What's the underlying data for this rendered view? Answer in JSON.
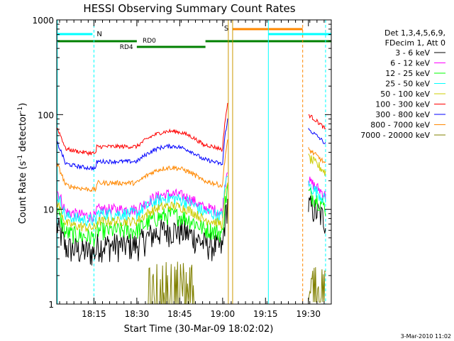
{
  "chart_data": {
    "type": "line",
    "title": "HESSI Observing Summary Count Rates",
    "xlabel": "Start Time (30-Mar-09 18:02:02)",
    "ylabel_main": "Count Rate (s",
    "ylabel_sup1": "-1",
    "ylabel_mid": " detector",
    "ylabel_sup2": "-1",
    "ylabel_end": ")",
    "timestamp": "3-Mar-2010 11:02",
    "xlim": [
      0,
      96
    ],
    "ylim": [
      1,
      1000
    ],
    "yscale": "log",
    "x_ticks": [
      {
        "value": 13,
        "label": "18:15"
      },
      {
        "value": 28,
        "label": "18:30"
      },
      {
        "value": 43,
        "label": "18:45"
      },
      {
        "value": 58,
        "label": "19:00"
      },
      {
        "value": 73,
        "label": "19:15"
      },
      {
        "value": 88,
        "label": "19:30"
      }
    ],
    "y_ticks": [
      {
        "value": 1,
        "label": "1"
      },
      {
        "value": 10,
        "label": "10"
      },
      {
        "value": 100,
        "label": "100"
      },
      {
        "value": 1000,
        "label": "1000"
      }
    ],
    "legend": {
      "placement": "right",
      "header": [
        "Det 1,3,4,5,6,9,",
        "FDecim 1, Att 0"
      ]
    },
    "series": [
      {
        "name": "3 - 6 keV",
        "color": "#000000",
        "base": 4.2,
        "after": 11,
        "noise": 0.35
      },
      {
        "name": "6 - 12 keV",
        "color": "#ff00ff",
        "base": 10,
        "after": 20,
        "noise": 0.14
      },
      {
        "name": "12 - 25 keV",
        "color": "#00ff00",
        "base": 6,
        "after": 15,
        "noise": 0.22
      },
      {
        "name": "25 - 50 keV",
        "color": "#00ffff",
        "base": 9,
        "after": 18,
        "noise": 0.16
      },
      {
        "name": "50 - 100 keV",
        "color": "#cccc00",
        "base": 7.5,
        "after": 35,
        "noise": 0.12
      },
      {
        "name": "100 - 300 keV",
        "color": "#ff0000",
        "base": 46,
        "after": 100,
        "noise": 0.05
      },
      {
        "name": "300 - 800 keV",
        "color": "#0000ff",
        "base": 32,
        "after": 70,
        "noise": 0.05
      },
      {
        "name": "800 - 7000 keV",
        "color": "#ff8800",
        "base": 19,
        "after": 43,
        "noise": 0.06
      },
      {
        "name": "7000 - 20000 keV",
        "color": "#808000",
        "base": 1,
        "after": 2,
        "noise": 0
      }
    ],
    "annotations": {
      "night_label": "N",
      "saa_label": "S",
      "rd0_label": "RD0",
      "rd4_label": "RD4"
    },
    "markers": {
      "night_start": 13,
      "night_end": 74,
      "saa_start": 61.5,
      "saa_end": 86,
      "data_gap_start": 60,
      "data_gap_end": 88
    },
    "colors": {
      "night": "#00ffff",
      "saa": "#ff8800",
      "decimation": "#008000",
      "gap": "#cc9900"
    }
  }
}
